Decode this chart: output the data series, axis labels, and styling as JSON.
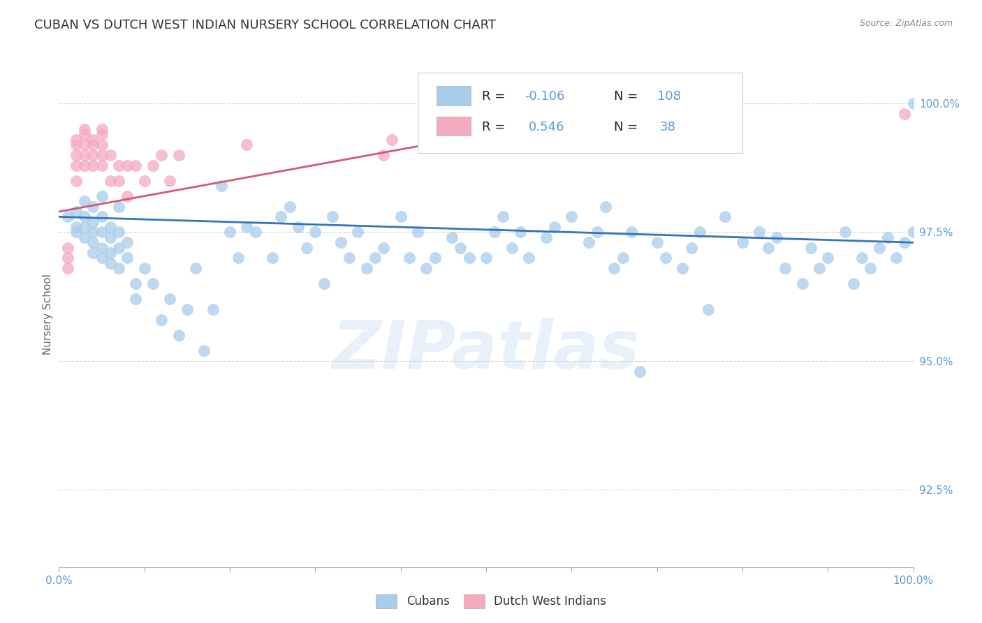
{
  "title": "CUBAN VS DUTCH WEST INDIAN NURSERY SCHOOL CORRELATION CHART",
  "source": "Source: ZipAtlas.com",
  "ylabel": "Nursery School",
  "x_range": [
    0.0,
    1.0
  ],
  "y_range": [
    91.0,
    100.8
  ],
  "blue_R": -0.106,
  "blue_N": 108,
  "pink_R": 0.546,
  "pink_N": 38,
  "blue_color": "#A8CCEA",
  "pink_color": "#F4AABF",
  "blue_line_color": "#3474BA",
  "pink_line_color": "#D95578",
  "watermark": "ZIPatlas",
  "legend_label_cubans": "Cubans",
  "legend_label_dutch": "Dutch West Indians",
  "blue_scatter_x": [
    0.01,
    0.02,
    0.02,
    0.02,
    0.03,
    0.03,
    0.03,
    0.03,
    0.04,
    0.04,
    0.04,
    0.04,
    0.04,
    0.05,
    0.05,
    0.05,
    0.05,
    0.05,
    0.06,
    0.06,
    0.06,
    0.06,
    0.07,
    0.07,
    0.07,
    0.07,
    0.08,
    0.08,
    0.09,
    0.09,
    0.1,
    0.11,
    0.12,
    0.13,
    0.14,
    0.15,
    0.16,
    0.17,
    0.18,
    0.19,
    0.2,
    0.21,
    0.22,
    0.23,
    0.25,
    0.26,
    0.27,
    0.28,
    0.29,
    0.3,
    0.31,
    0.32,
    0.33,
    0.34,
    0.35,
    0.36,
    0.37,
    0.38,
    0.4,
    0.41,
    0.42,
    0.43,
    0.44,
    0.46,
    0.47,
    0.48,
    0.5,
    0.51,
    0.52,
    0.53,
    0.54,
    0.55,
    0.57,
    0.58,
    0.6,
    0.62,
    0.63,
    0.64,
    0.65,
    0.66,
    0.67,
    0.68,
    0.7,
    0.71,
    0.73,
    0.74,
    0.75,
    0.76,
    0.78,
    0.8,
    0.82,
    0.83,
    0.84,
    0.85,
    0.87,
    0.88,
    0.89,
    0.9,
    0.92,
    0.93,
    0.94,
    0.95,
    0.96,
    0.97,
    0.98,
    0.99,
    1.0,
    1.0
  ],
  "blue_scatter_y": [
    97.8,
    97.9,
    97.6,
    97.5,
    98.1,
    97.8,
    97.6,
    97.4,
    98.0,
    97.7,
    97.5,
    97.3,
    97.1,
    98.2,
    97.8,
    97.5,
    97.2,
    97.0,
    97.6,
    97.4,
    97.1,
    96.9,
    98.0,
    97.5,
    97.2,
    96.8,
    97.3,
    97.0,
    96.5,
    96.2,
    96.8,
    96.5,
    95.8,
    96.2,
    95.5,
    96.0,
    96.8,
    95.2,
    96.0,
    98.4,
    97.5,
    97.0,
    97.6,
    97.5,
    97.0,
    97.8,
    98.0,
    97.6,
    97.2,
    97.5,
    96.5,
    97.8,
    97.3,
    97.0,
    97.5,
    96.8,
    97.0,
    97.2,
    97.8,
    97.0,
    97.5,
    96.8,
    97.0,
    97.4,
    97.2,
    97.0,
    97.0,
    97.5,
    97.8,
    97.2,
    97.5,
    97.0,
    97.4,
    97.6,
    97.8,
    97.3,
    97.5,
    98.0,
    96.8,
    97.0,
    97.5,
    94.8,
    97.3,
    97.0,
    96.8,
    97.2,
    97.5,
    96.0,
    97.8,
    97.3,
    97.5,
    97.2,
    97.4,
    96.8,
    96.5,
    97.2,
    96.8,
    97.0,
    97.5,
    96.5,
    97.0,
    96.8,
    97.2,
    97.4,
    97.0,
    97.3,
    97.5,
    100.0
  ],
  "pink_scatter_x": [
    0.01,
    0.01,
    0.01,
    0.02,
    0.02,
    0.02,
    0.02,
    0.02,
    0.03,
    0.03,
    0.03,
    0.03,
    0.03,
    0.04,
    0.04,
    0.04,
    0.04,
    0.05,
    0.05,
    0.05,
    0.05,
    0.05,
    0.06,
    0.06,
    0.07,
    0.07,
    0.08,
    0.08,
    0.09,
    0.1,
    0.11,
    0.12,
    0.13,
    0.14,
    0.22,
    0.38,
    0.39,
    0.99
  ],
  "pink_scatter_y": [
    97.2,
    97.0,
    96.8,
    99.2,
    98.8,
    98.5,
    99.0,
    99.3,
    99.4,
    99.2,
    99.0,
    98.8,
    99.5,
    99.3,
    98.8,
    99.0,
    99.2,
    99.4,
    99.0,
    99.2,
    99.5,
    98.8,
    99.0,
    98.5,
    98.8,
    98.5,
    98.2,
    98.8,
    98.8,
    98.5,
    98.8,
    99.0,
    98.5,
    99.0,
    99.2,
    99.0,
    99.3,
    99.8
  ],
  "blue_trendline_x": [
    0.0,
    1.0
  ],
  "blue_trendline_y": [
    97.8,
    97.3
  ],
  "pink_trendline_x": [
    0.0,
    0.48
  ],
  "pink_trendline_y": [
    97.9,
    99.35
  ],
  "background_color": "#ffffff",
  "grid_color": "#cccccc",
  "tick_label_color": "#5B9BD5",
  "title_color": "#333333",
  "title_fontsize": 13,
  "axis_label_fontsize": 11,
  "tick_fontsize": 11,
  "legend_fontsize": 13,
  "watermark_color": "#ccdff5",
  "watermark_alpha": 0.45
}
